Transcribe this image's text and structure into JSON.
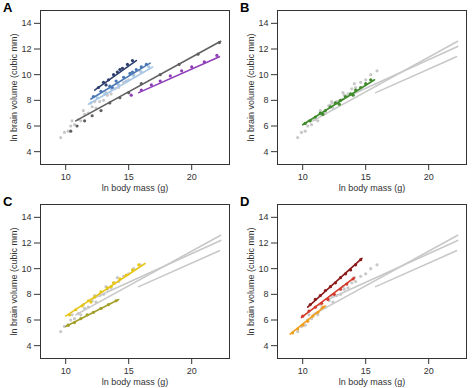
{
  "chart_data": [
    {
      "type": "scatter",
      "title": "A",
      "x_label": "ln body mass (g)",
      "y_label": "ln brain volume (cubic mm)",
      "xlim": [
        8,
        23
      ],
      "ylim": [
        3,
        15
      ],
      "xticks": [
        10,
        15,
        20
      ],
      "yticks": [
        4,
        6,
        8,
        10,
        12,
        14
      ],
      "series": [
        {
          "type": "scatter",
          "color": "#c8c8c8",
          "x": [
            9.6,
            9.9,
            10.2,
            10.4,
            10.7,
            11.0,
            11.2,
            11.5,
            11.8,
            12.1,
            12.4,
            12.7,
            13.0,
            13.3,
            13.6,
            13.9,
            14.2,
            14.6,
            15.0,
            15.4,
            15.9,
            10.5,
            11.4,
            12.3,
            13.2,
            14.1
          ],
          "values": [
            5.1,
            5.5,
            5.6,
            6.0,
            6.1,
            6.5,
            6.4,
            6.9,
            7.0,
            7.5,
            7.4,
            7.9,
            8.0,
            8.4,
            8.5,
            8.9,
            9.0,
            9.4,
            9.6,
            10.0,
            10.3,
            6.4,
            7.2,
            7.9,
            8.6,
            9.3
          ]
        },
        {
          "type": "scatter",
          "color": "#606060",
          "x": [
            10.4,
            10.9,
            11.5,
            12.1,
            12.8,
            13.5,
            14.3,
            15.0,
            16.0,
            17.5,
            19.0,
            20.5,
            22.2
          ],
          "values": [
            5.6,
            6.0,
            6.4,
            6.8,
            7.2,
            7.8,
            8.2,
            8.6,
            9.3,
            10.0,
            10.8,
            11.6,
            12.5
          ]
        },
        {
          "type": "scatter",
          "color": "#a9c8e6",
          "x": [
            12.0,
            12.5,
            13.1,
            13.6,
            14.2,
            14.8,
            15.4,
            16.0,
            16.6
          ],
          "values": [
            7.8,
            8.2,
            8.5,
            8.9,
            9.2,
            9.5,
            9.9,
            10.2,
            10.6
          ]
        },
        {
          "type": "scatter",
          "color": "#4a78b5",
          "x": [
            12.2,
            12.8,
            13.5,
            14.0,
            14.6,
            15.1,
            15.6,
            16.0,
            16.4,
            13.7,
            15.3
          ],
          "values": [
            8.3,
            8.7,
            9.1,
            9.5,
            9.8,
            10.1,
            10.4,
            10.6,
            10.8,
            9.0,
            10.2
          ]
        },
        {
          "type": "scatter",
          "color": "#2e3f6e",
          "x": [
            12.6,
            13.0,
            13.4,
            13.8,
            14.1,
            14.5,
            14.9,
            15.3,
            13.2,
            14.3
          ],
          "values": [
            9.0,
            9.4,
            9.6,
            10.0,
            10.2,
            10.5,
            10.8,
            11.1,
            9.2,
            10.4
          ]
        },
        {
          "type": "scatter",
          "color": "#8e3fb8",
          "x": [
            15.2,
            16.0,
            16.8,
            17.5,
            18.3,
            19.2,
            20.0,
            21.0,
            22.0
          ],
          "values": [
            8.4,
            8.8,
            9.2,
            9.5,
            9.9,
            10.3,
            10.6,
            11.0,
            11.5
          ]
        },
        {
          "type": "line",
          "color": "#606060",
          "x": [
            10.8,
            22.3
          ],
          "values": [
            6.4,
            12.6
          ]
        },
        {
          "type": "line",
          "color": "#a9c8e6",
          "x": [
            11.8,
            16.9
          ],
          "values": [
            7.7,
            10.6
          ]
        },
        {
          "type": "line",
          "color": "#4a78b5",
          "x": [
            12.0,
            16.7
          ],
          "values": [
            8.1,
            10.9
          ]
        },
        {
          "type": "line",
          "color": "#2e3f6e",
          "x": [
            12.3,
            15.6
          ],
          "values": [
            8.8,
            11.1
          ]
        },
        {
          "type": "line",
          "color": "#8e3fb8",
          "x": [
            15.8,
            22.2
          ],
          "values": [
            8.6,
            11.4
          ]
        }
      ]
    },
    {
      "type": "scatter",
      "title": "B",
      "x_label": "ln body mass (g)",
      "y_label": "ln brain volume (cubic mm)",
      "xlim": [
        8,
        23
      ],
      "ylim": [
        3,
        15
      ],
      "xticks": [
        10,
        15,
        20
      ],
      "yticks": [
        4,
        6,
        8,
        10,
        12,
        14
      ],
      "series": [
        {
          "type": "scatter",
          "color": "#c8c8c8",
          "x": [
            9.6,
            9.9,
            10.2,
            10.4,
            10.7,
            11.0,
            11.2,
            11.5,
            11.8,
            12.1,
            12.4,
            12.7,
            13.0,
            13.3,
            13.6,
            13.9,
            14.2,
            14.6,
            15.0,
            15.4,
            15.9,
            10.5,
            11.4,
            12.3,
            13.2,
            14.1
          ],
          "values": [
            5.1,
            5.5,
            5.6,
            6.0,
            6.1,
            6.5,
            6.4,
            6.9,
            7.0,
            7.5,
            7.4,
            7.9,
            8.0,
            8.4,
            8.5,
            8.9,
            9.0,
            9.4,
            9.6,
            10.0,
            10.3,
            6.4,
            7.2,
            7.9,
            8.6,
            9.3
          ]
        },
        {
          "type": "line",
          "color": "#c8c8c8",
          "x": [
            10.8,
            22.3
          ],
          "values": [
            6.4,
            12.6
          ]
        },
        {
          "type": "line",
          "color": "#c8c8c8",
          "x": [
            12.0,
            22.3
          ],
          "values": [
            7.6,
            12.2
          ]
        },
        {
          "type": "line",
          "color": "#c8c8c8",
          "x": [
            15.8,
            22.2
          ],
          "values": [
            8.6,
            11.4
          ]
        },
        {
          "type": "scatter",
          "color": "#3f8a2a",
          "x": [
            10.2,
            10.6,
            11.0,
            11.4,
            11.8,
            12.2,
            12.6,
            13.0,
            13.4,
            13.8,
            14.2,
            14.6,
            15.0,
            15.4,
            11.6,
            12.9,
            14.0
          ],
          "values": [
            6.2,
            6.4,
            6.7,
            7.0,
            7.2,
            7.5,
            7.8,
            8.0,
            8.3,
            8.5,
            8.8,
            9.0,
            9.3,
            9.6,
            6.9,
            7.7,
            8.4
          ]
        },
        {
          "type": "line",
          "color": "#3f8a2a",
          "x": [
            10.0,
            15.7
          ],
          "values": [
            6.1,
            9.6
          ]
        }
      ]
    },
    {
      "type": "scatter",
      "title": "C",
      "x_label": "ln body mass (g)",
      "y_label": "ln brain volume (cubic mm)",
      "xlim": [
        8,
        23
      ],
      "ylim": [
        3,
        15
      ],
      "xticks": [
        10,
        15,
        20
      ],
      "yticks": [
        4,
        6,
        8,
        10,
        12,
        14
      ],
      "series": [
        {
          "type": "scatter",
          "color": "#c8c8c8",
          "x": [
            9.6,
            9.9,
            10.2,
            10.4,
            10.7,
            11.0,
            11.2,
            11.5,
            11.8,
            12.1,
            12.4,
            12.7,
            13.0,
            13.3,
            13.6,
            13.9,
            14.2,
            14.6,
            15.0,
            15.4,
            15.9,
            10.5,
            11.4,
            12.3,
            13.2,
            14.1
          ],
          "values": [
            5.1,
            5.5,
            5.6,
            6.0,
            6.1,
            6.5,
            6.4,
            6.9,
            7.0,
            7.5,
            7.4,
            7.9,
            8.0,
            8.4,
            8.5,
            8.9,
            9.0,
            9.4,
            9.6,
            10.0,
            10.3,
            6.4,
            7.2,
            7.9,
            8.6,
            9.3
          ]
        },
        {
          "type": "line",
          "color": "#c8c8c8",
          "x": [
            10.8,
            22.3
          ],
          "values": [
            6.4,
            12.6
          ]
        },
        {
          "type": "line",
          "color": "#c8c8c8",
          "x": [
            12.0,
            22.3
          ],
          "values": [
            7.6,
            12.2
          ]
        },
        {
          "type": "line",
          "color": "#c8c8c8",
          "x": [
            15.8,
            22.2
          ],
          "values": [
            8.6,
            11.4
          ]
        },
        {
          "type": "scatter",
          "color": "#e6c619",
          "x": [
            10.3,
            10.8,
            11.3,
            11.8,
            12.3,
            12.8,
            13.3,
            13.8,
            14.3,
            14.8,
            15.3,
            15.8,
            12.0,
            13.6
          ],
          "values": [
            6.4,
            6.8,
            7.1,
            7.5,
            7.8,
            8.2,
            8.5,
            8.9,
            9.2,
            9.5,
            9.9,
            10.3,
            7.4,
            8.6
          ]
        },
        {
          "type": "scatter",
          "color": "#a3a02a",
          "x": [
            10.2,
            10.7,
            11.2,
            11.7,
            12.2,
            12.8,
            13.4,
            14.0
          ],
          "values": [
            5.6,
            5.8,
            6.1,
            6.4,
            6.6,
            6.9,
            7.2,
            7.5
          ]
        },
        {
          "type": "line",
          "color": "#e6c619",
          "x": [
            10.0,
            16.3
          ],
          "values": [
            6.3,
            10.4
          ]
        },
        {
          "type": "line",
          "color": "#a3a02a",
          "x": [
            10.0,
            14.2
          ],
          "values": [
            5.5,
            7.6
          ]
        }
      ]
    },
    {
      "type": "scatter",
      "title": "D",
      "x_label": "ln body mass (g)",
      "y_label": "ln brain volume (cubic mm)",
      "xlim": [
        8,
        23
      ],
      "ylim": [
        3,
        15
      ],
      "xticks": [
        10,
        15,
        20
      ],
      "yticks": [
        4,
        6,
        8,
        10,
        12,
        14
      ],
      "series": [
        {
          "type": "scatter",
          "color": "#c8c8c8",
          "x": [
            9.6,
            9.9,
            10.2,
            10.4,
            10.7,
            11.0,
            11.2,
            11.5,
            11.8,
            12.1,
            12.4,
            12.7,
            13.0,
            13.3,
            13.6,
            13.9,
            14.2,
            14.6,
            15.0,
            15.4,
            15.9,
            10.5,
            11.4,
            12.3,
            13.2,
            14.1
          ],
          "values": [
            5.1,
            5.5,
            5.6,
            6.0,
            6.1,
            6.5,
            6.4,
            6.9,
            7.0,
            7.5,
            7.4,
            7.9,
            8.0,
            8.4,
            8.5,
            8.9,
            9.0,
            9.4,
            9.6,
            10.0,
            10.3,
            6.4,
            7.2,
            7.9,
            8.6,
            9.3
          ]
        },
        {
          "type": "line",
          "color": "#c8c8c8",
          "x": [
            10.8,
            22.3
          ],
          "values": [
            6.4,
            12.6
          ]
        },
        {
          "type": "line",
          "color": "#c8c8c8",
          "x": [
            12.0,
            22.3
          ],
          "values": [
            7.6,
            12.2
          ]
        },
        {
          "type": "line",
          "color": "#c8c8c8",
          "x": [
            15.8,
            22.2
          ],
          "values": [
            8.6,
            11.4
          ]
        },
        {
          "type": "scatter",
          "color": "#d43a2a",
          "x": [
            10.0,
            10.5,
            11.0,
            11.5,
            12.0,
            12.5,
            13.0,
            13.5,
            14.0
          ],
          "values": [
            6.3,
            6.7,
            7.0,
            7.3,
            7.6,
            8.0,
            8.4,
            8.8,
            9.2
          ]
        },
        {
          "type": "scatter",
          "color": "#8b1a1a",
          "x": [
            10.6,
            11.0,
            11.4,
            11.8,
            12.2,
            12.6,
            13.0,
            13.4,
            13.8,
            14.2,
            14.6
          ],
          "values": [
            7.2,
            7.6,
            7.9,
            8.3,
            8.6,
            8.9,
            9.3,
            9.6,
            9.9,
            10.3,
            10.7
          ]
        },
        {
          "type": "scatter",
          "color": "#f0a020",
          "x": [
            9.2,
            9.6,
            10.0,
            10.4,
            10.8,
            11.2,
            11.6
          ],
          "values": [
            5.0,
            5.3,
            5.6,
            5.9,
            6.3,
            6.6,
            7.0
          ]
        },
        {
          "type": "line",
          "color": "#d43a2a",
          "x": [
            9.9,
            14.1
          ],
          "values": [
            6.2,
            9.3
          ]
        },
        {
          "type": "line",
          "color": "#8b1a1a",
          "x": [
            10.4,
            14.7
          ],
          "values": [
            7.0,
            10.8
          ]
        },
        {
          "type": "line",
          "color": "#f0a020",
          "x": [
            9.0,
            11.8
          ],
          "values": [
            4.9,
            7.1
          ]
        }
      ]
    }
  ]
}
